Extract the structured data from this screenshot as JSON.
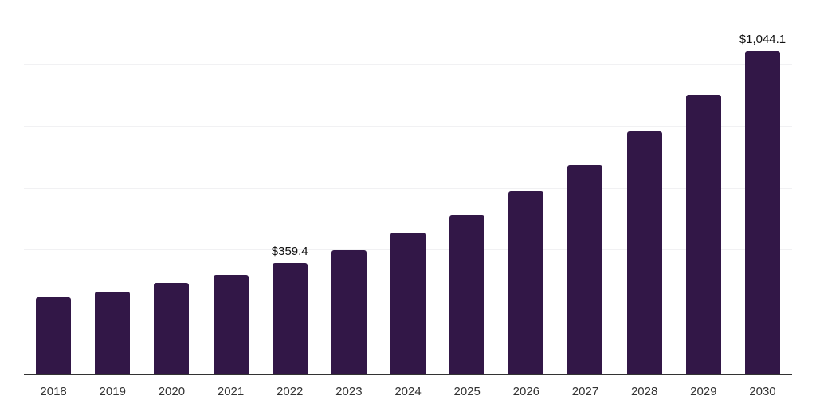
{
  "chart_data": {
    "type": "bar",
    "title": "",
    "categories": [
      "2018",
      "2019",
      "2020",
      "2021",
      "2022",
      "2023",
      "2024",
      "2025",
      "2026",
      "2027",
      "2028",
      "2029",
      "2030"
    ],
    "values": [
      249.0,
      267.0,
      295.0,
      321.0,
      359.4,
      402.0,
      458.0,
      515.0,
      591.0,
      676.0,
      783.0,
      903.0,
      1044.1
    ],
    "bar_labels": [
      "",
      "",
      "",
      "",
      "$359.4",
      "",
      "",
      "",
      "",
      "",
      "",
      "",
      "$1,044.1"
    ],
    "ylim": [
      0,
      1200
    ],
    "gridline_step": 200,
    "grid": "horizontal",
    "legend": "none",
    "xlabel": "",
    "ylabel": "",
    "colors": {
      "bar": "#321747",
      "gridline": "#f1f1f3",
      "axis_line": "#333333",
      "tick_label": "#333333",
      "data_label": "#111111",
      "background": "#ffffff"
    }
  }
}
